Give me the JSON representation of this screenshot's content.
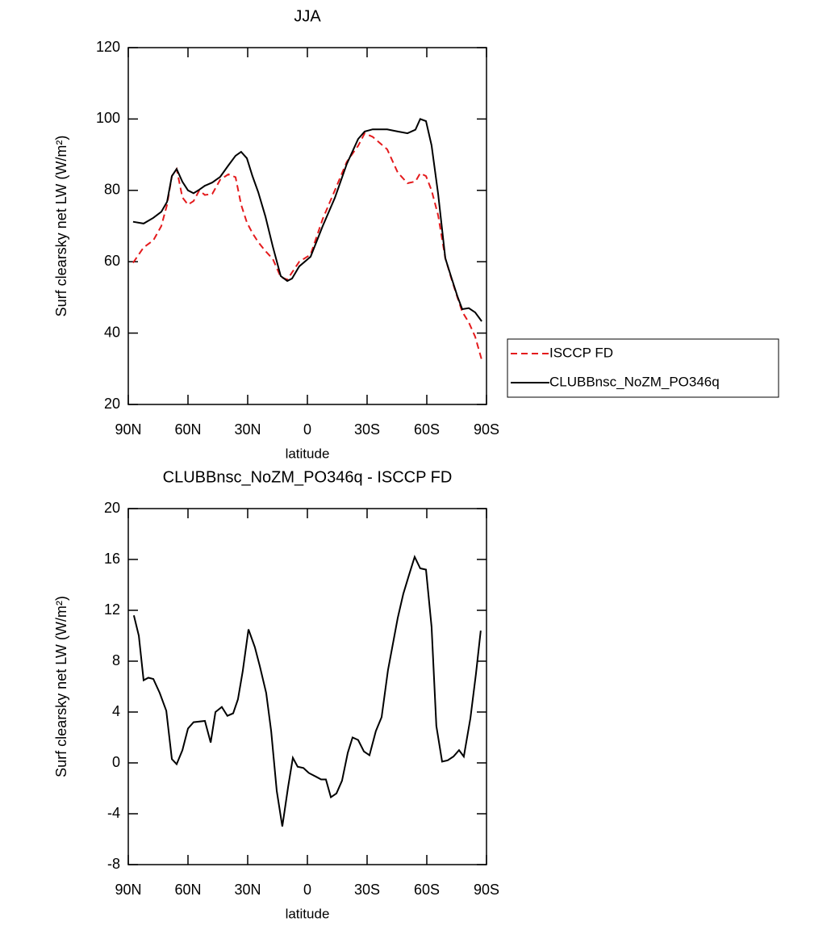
{
  "chart_data": [
    {
      "type": "line",
      "title": "JJA",
      "xlabel": "latitude",
      "ylabel": "Surf clearsky net LW (W/m²)",
      "x": [
        87.6,
        82.3,
        77.4,
        73.4,
        70.5,
        68.1,
        65.7,
        62.8,
        60.0,
        57.2,
        54.3,
        51.5,
        47.8,
        43.8,
        39.7,
        36.1,
        33.3,
        30.4,
        27.6,
        24.7,
        21.1,
        17.4,
        13.4,
        10.1,
        7.7,
        4.1,
        -1.6,
        -7.7,
        -13.8,
        -19.8,
        -25.5,
        -28.8,
        -32.8,
        -40.1,
        -45.4,
        -50.3,
        -54.3,
        -56.7,
        -59.6,
        -62.4,
        -65.7,
        -69.3,
        -72.5,
        -75.4,
        -77.8,
        -81.1,
        -84.3,
        -87.6
      ],
      "series": [
        {
          "name": "ISCCP FD",
          "color": "#e41a1c",
          "dashed": true,
          "values": [
            59.7,
            64,
            66,
            70,
            76,
            84,
            86,
            78,
            76,
            77,
            80,
            78.7,
            79,
            83,
            84.5,
            83.7,
            76,
            71,
            68,
            65.5,
            63,
            60.8,
            55.7,
            55,
            57,
            60,
            62,
            72,
            80,
            88,
            92.5,
            96,
            95,
            91.5,
            85,
            82,
            82.5,
            84.8,
            84,
            80,
            73,
            61,
            55,
            50,
            46,
            43,
            39,
            32.5
          ]
        },
        {
          "name": "CLUBBnsc_NoZM_PO346q",
          "color": "#000000",
          "dashed": false,
          "values": [
            71.2,
            70.7,
            72.3,
            74,
            76.8,
            84,
            86,
            82.4,
            80,
            79.2,
            80.2,
            81.3,
            82.2,
            83.8,
            87,
            89.7,
            90.8,
            89,
            84,
            79.5,
            72.7,
            64.3,
            56,
            54.6,
            55.3,
            58.7,
            61.4,
            70,
            77.9,
            87.4,
            94.4,
            96.5,
            97.1,
            97.1,
            96.5,
            96,
            97,
            100,
            99.4,
            92.6,
            79,
            61,
            55.3,
            50.3,
            46.7,
            47,
            45.8,
            43.3
          ]
        }
      ],
      "xlim": [
        90,
        -90
      ],
      "xticks": [
        {
          "value": 90,
          "label": "90N"
        },
        {
          "value": 60,
          "label": "60N"
        },
        {
          "value": 30,
          "label": "30N"
        },
        0,
        {
          "value": -30,
          "label": "30S"
        },
        {
          "value": -60,
          "label": "60S"
        },
        {
          "value": -90,
          "label": "90S"
        }
      ],
      "ylim": [
        20,
        120
      ],
      "yticks": [
        20,
        40,
        60,
        80,
        100,
        120
      ],
      "legend": "right"
    },
    {
      "type": "line",
      "title": "CLUBBnsc_NoZM_PO346q - ISCCP FD",
      "xlabel": "latitude",
      "ylabel": "Surf clearsky net LW (W/m²)",
      "x": [
        87.2,
        84.7,
        82.3,
        79.9,
        77.4,
        74.2,
        70.9,
        68.1,
        65.7,
        62.8,
        60.0,
        57.2,
        51.5,
        48.6,
        46.2,
        43.0,
        40.2,
        37.3,
        34.9,
        32.5,
        29.6,
        26.4,
        23.9,
        20.7,
        18.2,
        15.4,
        12.6,
        9.7,
        7.3,
        4.9,
        2.0,
        -0.8,
        -4.5,
        -6.9,
        -9.3,
        -11.8,
        -14.6,
        -17.4,
        -20.3,
        -22.7,
        -25.5,
        -28.4,
        -31.2,
        -34.4,
        -37.3,
        -40.5,
        -45.4,
        -48.2,
        -51.1,
        -53.9,
        -56.7,
        -59.6,
        -62.4,
        -64.8,
        -67.7,
        -70.5,
        -73.4,
        -76.2,
        -78.6,
        -81.9,
        -84.7,
        -87.1
      ],
      "values": [
        11.6,
        10,
        6.5,
        6.7,
        6.6,
        5.5,
        4.1,
        0.3,
        -0.1,
        1,
        2.7,
        3.2,
        3.3,
        1.6,
        4,
        4.4,
        3.7,
        3.9,
        5,
        7.2,
        10.5,
        9.1,
        7.6,
        5.5,
        2.5,
        -2.2,
        -5,
        -1.9,
        0.4,
        -0.3,
        -0.4,
        -0.8,
        -1.1,
        -1.3,
        -1.3,
        -2.7,
        -2.4,
        -1.4,
        0.8,
        2,
        1.8,
        0.9,
        0.6,
        2.5,
        3.6,
        7.3,
        11.4,
        13.3,
        14.8,
        16.2,
        15.3,
        15.2,
        10.7,
        2.9,
        0.1,
        0.2,
        0.5,
        1,
        0.5,
        3.5,
        7,
        10.4
      ],
      "color": "#000000",
      "xlim": [
        90,
        -90
      ],
      "xticks": [
        {
          "value": 90,
          "label": "90N"
        },
        {
          "value": 60,
          "label": "60N"
        },
        {
          "value": 30,
          "label": "30N"
        },
        0,
        {
          "value": -30,
          "label": "30S"
        },
        {
          "value": -60,
          "label": "60S"
        },
        {
          "value": -90,
          "label": "90S"
        }
      ],
      "ylim": [
        -8,
        20
      ],
      "yticks": [
        -8,
        -4,
        0,
        4,
        8,
        12,
        16,
        20
      ]
    }
  ]
}
